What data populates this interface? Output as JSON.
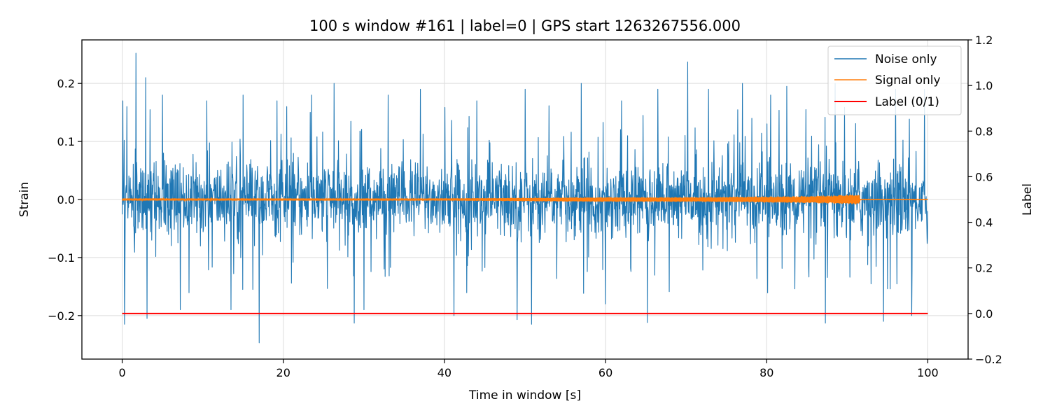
{
  "chart_data": {
    "type": "line",
    "title": "100 s window #161 | label=0 | GPS start 1263267556.000",
    "xlabel": "Time in window [s]",
    "ylabel": "Strain",
    "y2label": "Label",
    "xlim": [
      -5,
      105
    ],
    "ylim": [
      -0.275,
      0.275
    ],
    "y2lim": [
      -0.2,
      1.2
    ],
    "x_ticks": [
      0,
      20,
      40,
      60,
      80,
      100
    ],
    "x_tick_labels": [
      "0",
      "20",
      "40",
      "60",
      "80",
      "100"
    ],
    "y_ticks": [
      -0.2,
      -0.1,
      0.0,
      0.1,
      0.2
    ],
    "y_tick_labels": [
      "−0.2",
      "−0.1",
      "0.0",
      "0.1",
      "0.2"
    ],
    "y2_ticks": [
      -0.2,
      0.0,
      0.2,
      0.4,
      0.6,
      0.8,
      1.0,
      1.2
    ],
    "y2_tick_labels": [
      "−0.2",
      "0.0",
      "0.2",
      "0.4",
      "0.6",
      "0.8",
      "1.0",
      "1.2"
    ],
    "grid": true,
    "legend_position": "top-right",
    "series": [
      {
        "name": "Noise only",
        "color": "#1f77b4",
        "axis": "left",
        "x_range": [
          0,
          100
        ],
        "typical_band": [
          -0.06,
          0.06
        ],
        "spikes": [
          {
            "x": 0.1,
            "y": 0.17
          },
          {
            "x": 0.3,
            "y": -0.215
          },
          {
            "x": 0.6,
            "y": 0.16
          },
          {
            "x": 1.7,
            "y": 0.252
          },
          {
            "x": 2.9,
            "y": 0.21
          },
          {
            "x": 3.1,
            "y": -0.205
          },
          {
            "x": 5.0,
            "y": 0.18
          },
          {
            "x": 7.2,
            "y": -0.19
          },
          {
            "x": 10.5,
            "y": 0.17
          },
          {
            "x": 13.5,
            "y": -0.19
          },
          {
            "x": 15.0,
            "y": 0.18
          },
          {
            "x": 17.0,
            "y": -0.247
          },
          {
            "x": 19.2,
            "y": 0.17
          },
          {
            "x": 23.5,
            "y": 0.18
          },
          {
            "x": 26.3,
            "y": 0.2
          },
          {
            "x": 28.8,
            "y": -0.213
          },
          {
            "x": 30.0,
            "y": -0.19
          },
          {
            "x": 33.0,
            "y": 0.18
          },
          {
            "x": 37.0,
            "y": 0.19
          },
          {
            "x": 41.2,
            "y": -0.2
          },
          {
            "x": 44.0,
            "y": 0.17
          },
          {
            "x": 49.0,
            "y": -0.207
          },
          {
            "x": 50.0,
            "y": 0.19
          },
          {
            "x": 50.8,
            "y": -0.215
          },
          {
            "x": 57.0,
            "y": 0.2
          },
          {
            "x": 60.0,
            "y": -0.18
          },
          {
            "x": 62.0,
            "y": 0.17
          },
          {
            "x": 65.2,
            "y": -0.212
          },
          {
            "x": 66.5,
            "y": 0.19
          },
          {
            "x": 70.2,
            "y": 0.237
          },
          {
            "x": 72.8,
            "y": 0.19
          },
          {
            "x": 77.0,
            "y": 0.2
          },
          {
            "x": 80.5,
            "y": 0.18
          },
          {
            "x": 82.5,
            "y": 0.195
          },
          {
            "x": 87.3,
            "y": -0.213
          },
          {
            "x": 88.5,
            "y": 0.2
          },
          {
            "x": 94.5,
            "y": -0.21
          },
          {
            "x": 96.0,
            "y": 0.19
          },
          {
            "x": 98.0,
            "y": -0.2
          },
          {
            "x": 99.6,
            "y": 0.19
          }
        ]
      },
      {
        "name": "Signal only",
        "color": "#ff7f0e",
        "axis": "left",
        "x_range": [
          0,
          100
        ],
        "envelope": [
          {
            "x": 0,
            "y": 0.002
          },
          {
            "x": 40,
            "y": 0.002
          },
          {
            "x": 50,
            "y": 0.003
          },
          {
            "x": 60,
            "y": 0.004
          },
          {
            "x": 70,
            "y": 0.004
          },
          {
            "x": 78,
            "y": 0.005
          },
          {
            "x": 84,
            "y": 0.006
          },
          {
            "x": 88,
            "y": 0.007
          },
          {
            "x": 91.5,
            "y": 0.009
          },
          {
            "x": 91.6,
            "y": 0.0005
          },
          {
            "x": 100,
            "y": 0.0005
          }
        ]
      },
      {
        "name": "Label (0/1)",
        "color": "#ff0000",
        "axis": "right",
        "x": [
          0,
          100
        ],
        "y": [
          0,
          0
        ]
      }
    ]
  }
}
